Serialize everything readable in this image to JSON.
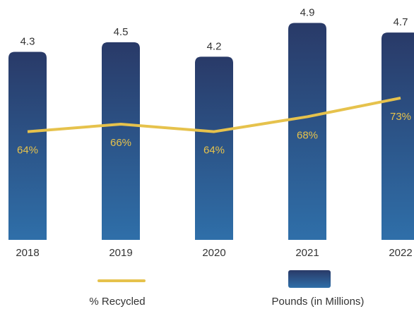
{
  "chart_data": {
    "type": "bar",
    "categories": [
      "2018",
      "2019",
      "2020",
      "2021",
      "2022"
    ],
    "series": [
      {
        "name": "Pounds (in Millions)",
        "type": "bar",
        "color": "#2c4f86",
        "values": [
          4.3,
          4.5,
          4.2,
          4.9,
          4.7
        ]
      },
      {
        "name": "% Recycled",
        "type": "line",
        "axis": "y2",
        "color": "#e6c24c",
        "values": [
          64,
          66,
          64,
          68,
          73
        ],
        "value_labels": [
          "64%",
          "66%",
          "64%",
          "68%",
          "73%"
        ]
      }
    ],
    "ylim": [
      0.4,
      5.2
    ],
    "y2lim": [
      35,
      97
    ],
    "legend": "bottom"
  }
}
